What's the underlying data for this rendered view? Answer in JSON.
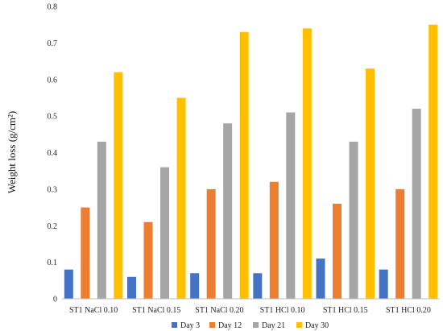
{
  "chart_data": {
    "type": "bar",
    "title": "",
    "xlabel": "",
    "ylabel": "Weight loss (g/cm²)",
    "ylim": [
      0,
      0.8
    ],
    "yticks": [
      "0",
      "0.1",
      "0.2",
      "0.3",
      "0.4",
      "0.5",
      "0.6",
      "0.7",
      "0.8"
    ],
    "grid": false,
    "legend_position": "bottom",
    "categories": [
      "ST1 NaCl 0.10",
      "ST1 NaCl 0.15",
      "ST1 NaCl 0.20",
      "ST1 HCl 0.10",
      "ST1 HCl 0.15",
      "ST1 HCl 0.20"
    ],
    "series": [
      {
        "name": "Day 3",
        "color": "#4472C4",
        "values": [
          0.08,
          0.06,
          0.07,
          0.07,
          0.11,
          0.08
        ]
      },
      {
        "name": "Day 12",
        "color": "#ED7D31",
        "values": [
          0.25,
          0.21,
          0.3,
          0.32,
          0.26,
          0.3
        ]
      },
      {
        "name": "Day 21",
        "color": "#A5A5A5",
        "values": [
          0.43,
          0.36,
          0.48,
          0.51,
          0.43,
          0.52
        ]
      },
      {
        "name": "Day 30",
        "color": "#FFC000",
        "values": [
          0.62,
          0.55,
          0.73,
          0.74,
          0.63,
          0.75
        ]
      }
    ]
  }
}
